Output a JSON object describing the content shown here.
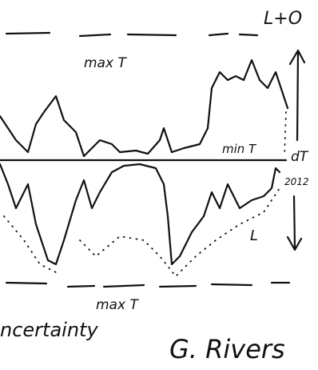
{
  "header": {
    "corner_label": "L+O"
  },
  "labels": {
    "top": "max T",
    "middle": "min T",
    "delta": "dT",
    "year": "2012",
    "low": "L",
    "bottom": "max T"
  },
  "footer": {
    "left": "ncertainty",
    "right": "G. Rivers"
  }
}
